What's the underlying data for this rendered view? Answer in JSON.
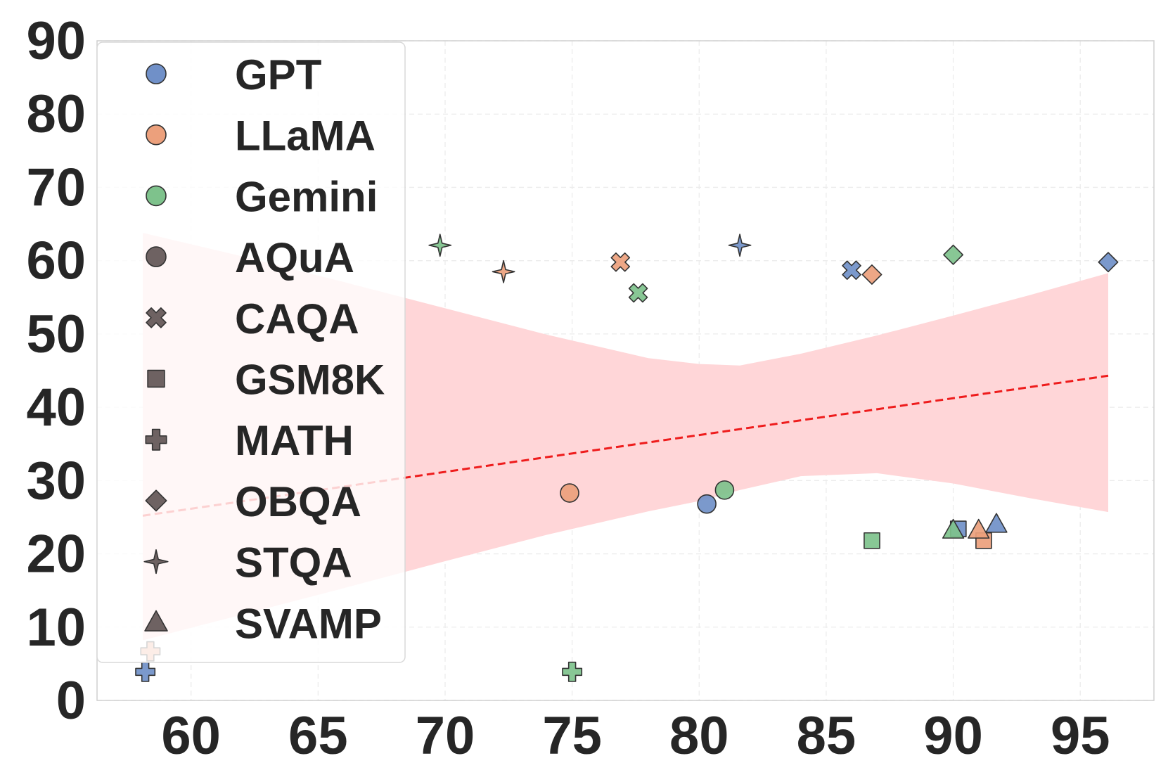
{
  "chart_data": {
    "type": "scatter",
    "title": "",
    "xlabel": "",
    "ylabel": "",
    "xlim": [
      56.3,
      97.9
    ],
    "ylim": [
      0,
      90
    ],
    "xticks": [
      "60",
      "65",
      "70",
      "75",
      "80",
      "85",
      "90",
      "95"
    ],
    "yticks": [
      "0",
      "10",
      "20",
      "30",
      "40",
      "50",
      "60",
      "70",
      "80",
      "90"
    ],
    "grid": true,
    "legend_position": "upper-left",
    "model_colors": {
      "GPT": "#7090c8",
      "LLaMA": "#eca07c",
      "Gemini": "#7ec28c"
    },
    "legend": [
      {
        "label": "GPT",
        "marker": "circle",
        "color": "#7090c8"
      },
      {
        "label": "LLaMA",
        "marker": "circle",
        "color": "#eca07c"
      },
      {
        "label": "Gemini",
        "marker": "circle",
        "color": "#7ec28c"
      },
      {
        "label": "AQuA",
        "marker": "circle",
        "color": "#6e6262"
      },
      {
        "label": "CAQA",
        "marker": "x",
        "color": "#6e6262"
      },
      {
        "label": "GSM8K",
        "marker": "square",
        "color": "#6e6262"
      },
      {
        "label": "MATH",
        "marker": "plus",
        "color": "#6e6262"
      },
      {
        "label": "OBQA",
        "marker": "diamond",
        "color": "#6e6262"
      },
      {
        "label": "STQA",
        "marker": "star",
        "color": "#6e6262"
      },
      {
        "label": "SVAMP",
        "marker": "triangle",
        "color": "#6e6262"
      }
    ],
    "points": [
      {
        "model": "GPT",
        "dataset": "AQuA",
        "x": 80.3,
        "y": 26.8
      },
      {
        "model": "LLaMA",
        "dataset": "AQuA",
        "x": 74.9,
        "y": 28.3
      },
      {
        "model": "Gemini",
        "dataset": "AQuA",
        "x": 81.0,
        "y": 28.7
      },
      {
        "model": "GPT",
        "dataset": "CAQA",
        "x": 86.0,
        "y": 58.7
      },
      {
        "model": "LLaMA",
        "dataset": "CAQA",
        "x": 76.9,
        "y": 59.8
      },
      {
        "model": "Gemini",
        "dataset": "CAQA",
        "x": 77.6,
        "y": 55.6
      },
      {
        "model": "GPT",
        "dataset": "GSM8K",
        "x": 90.2,
        "y": 23.4
      },
      {
        "model": "LLaMA",
        "dataset": "GSM8K",
        "x": 91.2,
        "y": 21.8
      },
      {
        "model": "Gemini",
        "dataset": "GSM8K",
        "x": 86.8,
        "y": 21.8
      },
      {
        "model": "GPT",
        "dataset": "MATH",
        "x": 58.2,
        "y": 3.9
      },
      {
        "model": "LLaMA",
        "dataset": "MATH",
        "x": 58.4,
        "y": 6.7
      },
      {
        "model": "Gemini",
        "dataset": "MATH",
        "x": 75.0,
        "y": 3.9
      },
      {
        "model": "GPT",
        "dataset": "OBQA",
        "x": 96.1,
        "y": 59.8
      },
      {
        "model": "LLaMA",
        "dataset": "OBQA",
        "x": 86.8,
        "y": 58.1
      },
      {
        "model": "Gemini",
        "dataset": "OBQA",
        "x": 90.0,
        "y": 60.8
      },
      {
        "model": "GPT",
        "dataset": "STQA",
        "x": 81.6,
        "y": 62.1
      },
      {
        "model": "LLaMA",
        "dataset": "STQA",
        "x": 72.3,
        "y": 58.5
      },
      {
        "model": "Gemini",
        "dataset": "STQA",
        "x": 69.8,
        "y": 62.1
      },
      {
        "model": "GPT",
        "dataset": "SVAMP",
        "x": 91.7,
        "y": 24.0
      },
      {
        "model": "LLaMA",
        "dataset": "SVAMP",
        "x": 91.0,
        "y": 23.2
      },
      {
        "model": "Gemini",
        "dataset": "SVAMP",
        "x": 90.0,
        "y": 23.2
      }
    ],
    "regression": {
      "color": "#ee1c1c",
      "band_color": "#ffd6d8",
      "x": [
        58.1,
        62,
        66,
        70,
        74,
        78,
        80,
        81.6,
        84,
        87,
        90,
        93,
        96.1
      ],
      "fit": [
        25.2,
        27.1,
        29.1,
        31.0,
        33.0,
        34.9,
        35.9,
        36.7,
        37.8,
        39.3,
        40.8,
        42.2,
        44.3
      ],
      "lower": [
        8.2,
        11.7,
        15.3,
        19.0,
        22.6,
        25.8,
        27.2,
        28.7,
        30.6,
        31.0,
        29.6,
        27.6,
        25.7
      ],
      "upper": [
        63.8,
        60.6,
        57.1,
        53.5,
        49.9,
        46.7,
        45.9,
        45.7,
        47.3,
        49.8,
        52.5,
        55.3,
        58.3
      ]
    }
  }
}
